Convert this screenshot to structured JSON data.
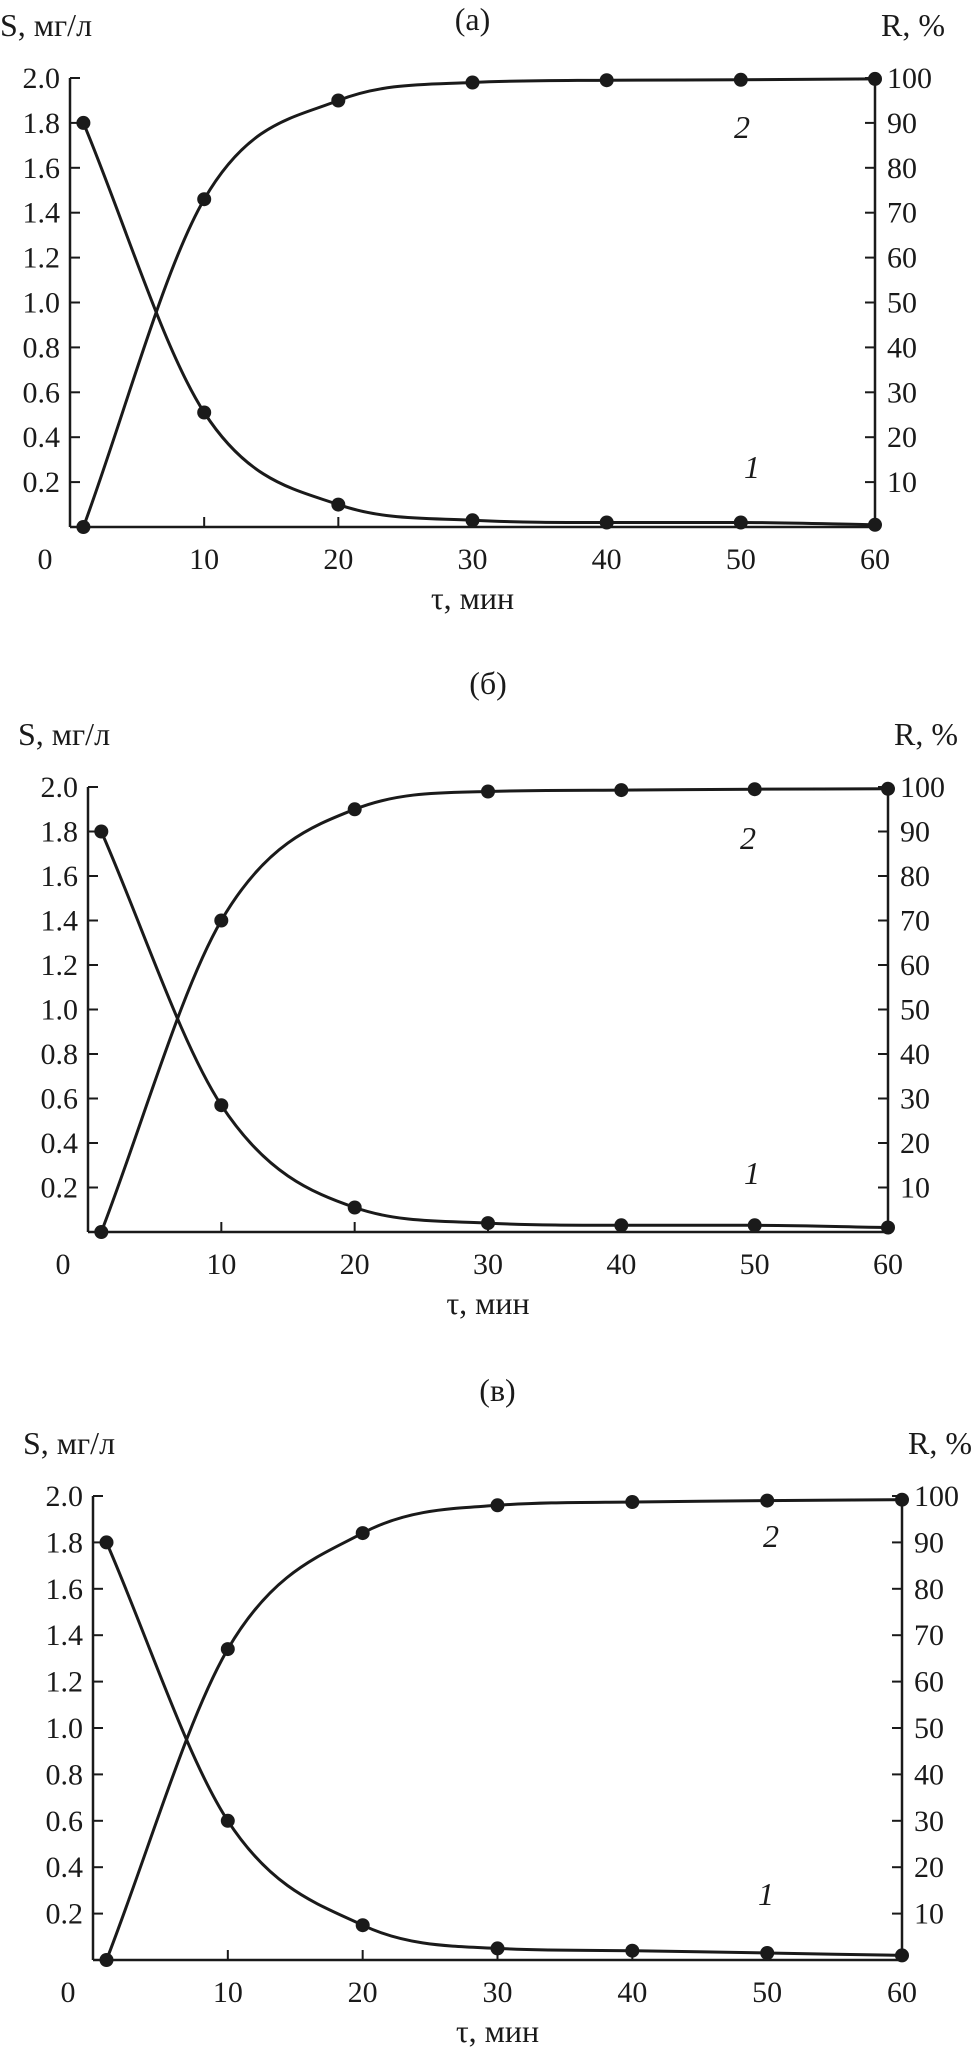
{
  "chart_data": [
    {
      "type": "line",
      "panel_label": "(а)",
      "x_axis_label": "τ, мин",
      "y_left_label": "S, мг/л",
      "y_right_label": "R, %",
      "xlim": [
        0,
        60
      ],
      "y_left_lim": [
        0,
        2.0
      ],
      "y_right_lim": [
        0,
        100
      ],
      "x_ticks": [
        "0",
        "10",
        "20",
        "30",
        "40",
        "50",
        "60"
      ],
      "y_left_ticks": [
        "0.2",
        "0.4",
        "0.6",
        "0.8",
        "1.0",
        "1.2",
        "1.4",
        "1.6",
        "1.8",
        "2.0"
      ],
      "y_right_ticks": [
        "10",
        "20",
        "30",
        "40",
        "50",
        "60",
        "70",
        "80",
        "90",
        "100"
      ],
      "series": [
        {
          "label": "1",
          "axis": "left",
          "x": [
            0,
            10,
            20,
            30,
            40,
            50,
            60
          ],
          "values": [
            1.8,
            0.51,
            0.1,
            0.03,
            0.02,
            0.02,
            0.01
          ]
        },
        {
          "label": "2",
          "axis": "right",
          "x": [
            0,
            10,
            20,
            30,
            40,
            50,
            60
          ],
          "values": [
            0,
            73,
            95,
            99,
            99.5,
            99.6,
            99.8
          ]
        }
      ]
    },
    {
      "type": "line",
      "panel_label": "(б)",
      "x_axis_label": "τ, мин",
      "y_left_label": "S, мг/л",
      "y_right_label": "R, %",
      "xlim": [
        0,
        60
      ],
      "y_left_lim": [
        0,
        2.0
      ],
      "y_right_lim": [
        0,
        100
      ],
      "x_ticks": [
        "0",
        "10",
        "20",
        "30",
        "40",
        "50",
        "60"
      ],
      "y_left_ticks": [
        "0.2",
        "0.4",
        "0.6",
        "0.8",
        "1.0",
        "1.2",
        "1.4",
        "1.6",
        "1.8",
        "2.0"
      ],
      "y_right_ticks": [
        "10",
        "20",
        "30",
        "40",
        "50",
        "60",
        "70",
        "80",
        "90",
        "100"
      ],
      "series": [
        {
          "label": "1",
          "axis": "left",
          "x": [
            0,
            10,
            20,
            30,
            40,
            50,
            60
          ],
          "values": [
            1.8,
            0.57,
            0.11,
            0.04,
            0.03,
            0.03,
            0.02
          ]
        },
        {
          "label": "2",
          "axis": "right",
          "x": [
            0,
            10,
            20,
            30,
            40,
            50,
            60
          ],
          "values": [
            0,
            70,
            95,
            99,
            99.3,
            99.5,
            99.6
          ]
        }
      ]
    },
    {
      "type": "line",
      "panel_label": "(в)",
      "x_axis_label": "τ, мин",
      "y_left_label": "S, мг/л",
      "y_right_label": "R, %",
      "xlim": [
        0,
        60
      ],
      "y_left_lim": [
        0,
        2.0
      ],
      "y_right_lim": [
        0,
        100
      ],
      "x_ticks": [
        "0",
        "10",
        "20",
        "30",
        "40",
        "50",
        "60"
      ],
      "y_left_ticks": [
        "0.2",
        "0.4",
        "0.6",
        "0.8",
        "1.0",
        "1.2",
        "1.4",
        "1.6",
        "1.8",
        "2.0"
      ],
      "y_right_ticks": [
        "10",
        "20",
        "30",
        "40",
        "50",
        "60",
        "70",
        "80",
        "90",
        "100"
      ],
      "series": [
        {
          "label": "1",
          "axis": "left",
          "x": [
            0,
            10,
            20,
            30,
            40,
            50,
            60
          ],
          "values": [
            1.8,
            0.6,
            0.15,
            0.05,
            0.04,
            0.03,
            0.02
          ]
        },
        {
          "label": "2",
          "axis": "right",
          "x": [
            0,
            10,
            20,
            30,
            40,
            50,
            60
          ],
          "values": [
            0,
            67,
            92,
            98,
            98.7,
            99,
            99.2
          ]
        }
      ]
    }
  ]
}
